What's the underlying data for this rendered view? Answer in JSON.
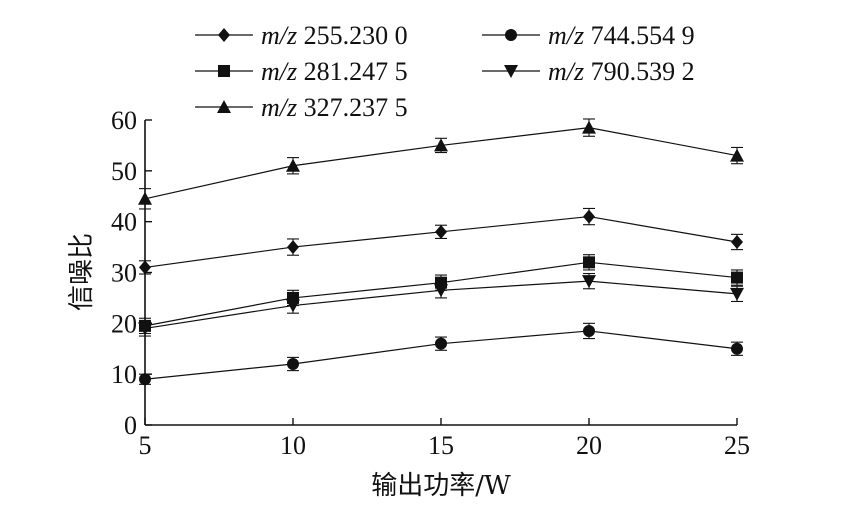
{
  "chart_data": {
    "type": "line",
    "title": "",
    "xlabel": "输出功率/W",
    "ylabel": "信噪比",
    "x": [
      5,
      10,
      15,
      20,
      25
    ],
    "x_ticks": [
      "5",
      "10",
      "15",
      "20",
      "25"
    ],
    "y_ticks": [
      "0",
      "10",
      "20",
      "30",
      "40",
      "50",
      "60"
    ],
    "xlim": [
      5,
      25
    ],
    "ylim": [
      0,
      60
    ],
    "grid": false,
    "legend_position": "top",
    "series": [
      {
        "name_italic": "m/z",
        "name_value": "255.230 0",
        "marker": "diamond",
        "values": [
          31,
          35,
          38,
          41,
          36
        ],
        "errors": [
          1.3,
          1.6,
          1.3,
          1.6,
          1.5
        ]
      },
      {
        "name_italic": "m/z",
        "name_value": "281.247 5",
        "marker": "square",
        "values": [
          19.5,
          25,
          28,
          32,
          29
        ],
        "errors": [
          1.5,
          1.5,
          1.5,
          1.5,
          1.5
        ]
      },
      {
        "name_italic": "m/z",
        "name_value": "327.237 5",
        "marker": "triangle-up",
        "values": [
          44.5,
          51,
          55,
          58.5,
          53
        ],
        "errors": [
          2.0,
          1.6,
          1.4,
          1.7,
          1.6
        ]
      },
      {
        "name_italic": "m/z",
        "name_value": "744.554 9",
        "marker": "circle",
        "values": [
          9,
          12,
          16,
          18.5,
          15
        ],
        "errors": [
          1.0,
          1.3,
          1.3,
          1.5,
          1.3
        ]
      },
      {
        "name_italic": "m/z",
        "name_value": "790.539 2",
        "marker": "triangle-down",
        "values": [
          19,
          23.5,
          26.5,
          28.3,
          25.8
        ],
        "errors": [
          1.5,
          1.5,
          1.5,
          1.5,
          1.5
        ]
      }
    ]
  }
}
